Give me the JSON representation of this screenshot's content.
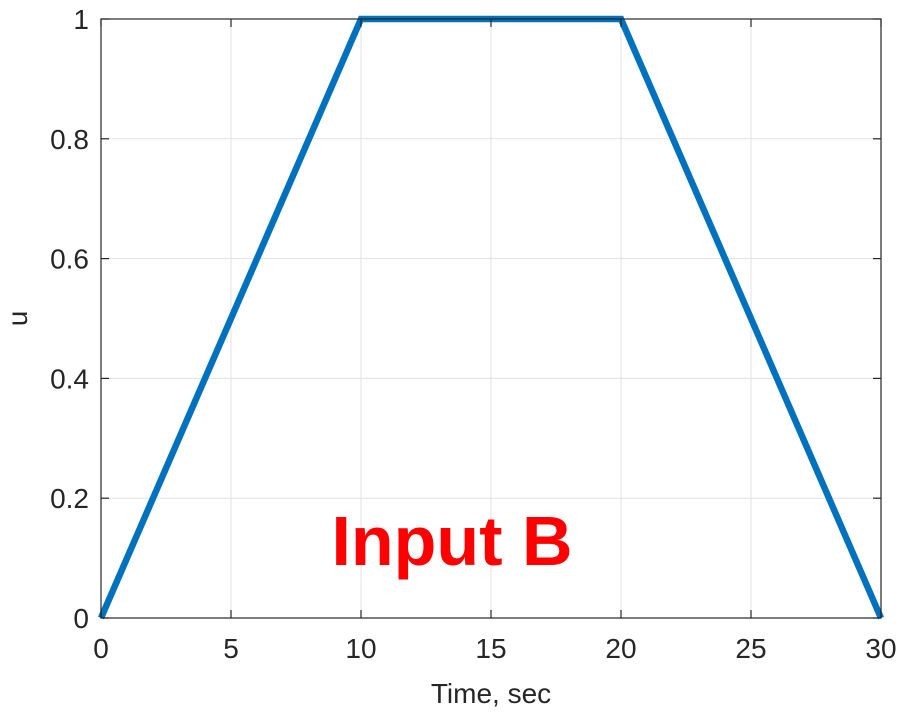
{
  "chart_data": {
    "type": "line",
    "title": "",
    "xlabel": "Time, sec",
    "ylabel": "u",
    "xlim": [
      0,
      30
    ],
    "ylim": [
      0,
      1
    ],
    "xticks": [
      0,
      5,
      10,
      15,
      20,
      25,
      30
    ],
    "yticks": [
      0,
      0.2,
      0.4,
      0.6,
      0.8,
      1
    ],
    "xtick_labels": [
      "0",
      "5",
      "10",
      "15",
      "20",
      "25",
      "30"
    ],
    "ytick_labels": [
      "0",
      "0.2",
      "0.4",
      "0.6",
      "0.8",
      "1"
    ],
    "grid": true,
    "series": [
      {
        "x": [
          0,
          10,
          20,
          30
        ],
        "y": [
          0,
          1,
          1,
          0
        ],
        "color": "#0072BD"
      }
    ],
    "annotations": [
      {
        "text": "Input B",
        "x": 13.5,
        "y": 0.13,
        "color": "#FF0000"
      }
    ]
  }
}
